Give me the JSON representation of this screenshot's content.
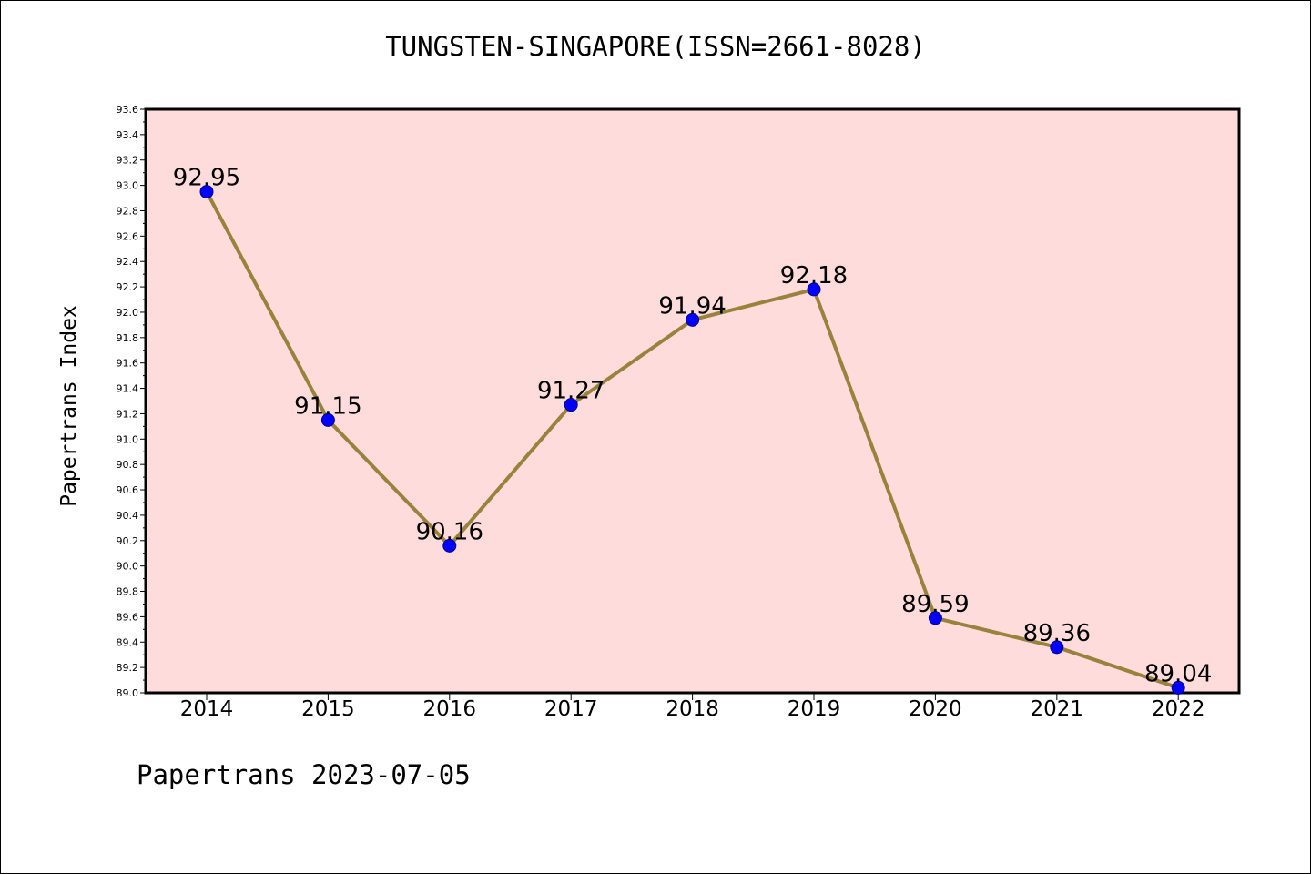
{
  "chart_data": {
    "type": "line",
    "title": "TUNGSTEN-SINGAPORE(ISSN=2661-8028)",
    "xlabel": "",
    "ylabel": "Papertrans Index",
    "categories": [
      "2014",
      "2015",
      "2016",
      "2017",
      "2018",
      "2019",
      "2020",
      "2021",
      "2022"
    ],
    "series": [
      {
        "values": [
          92.95,
          91.15,
          90.16,
          91.27,
          91.94,
          92.18,
          89.59,
          89.36,
          89.04
        ],
        "data_labels": [
          "92.95",
          "91.15",
          "90.16",
          "91.27",
          "91.94",
          "92.18",
          "89.59",
          "89.36",
          "89.04"
        ]
      }
    ],
    "ylim": [
      89.0,
      93.6
    ],
    "yticks": [
      "89.0",
      "89.2",
      "89.4",
      "89.6",
      "89.8",
      "90.0",
      "90.2",
      "90.4",
      "90.6",
      "90.8",
      "91.0",
      "91.2",
      "91.4",
      "91.6",
      "91.8",
      "92.0",
      "92.2",
      "92.4",
      "92.6",
      "92.8",
      "93.0",
      "93.2",
      "93.4",
      "93.6"
    ],
    "grid": false,
    "colors": {
      "plot_bg": "#ffdcdc",
      "line": "#98823c",
      "marker": "#0000ff",
      "marker_edge": "#00008b"
    }
  },
  "footer": "Papertrans 2023-07-05"
}
